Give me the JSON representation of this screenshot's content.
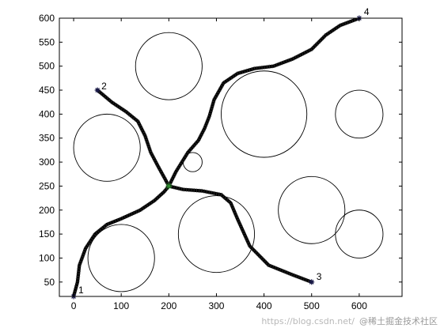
{
  "chart_data": {
    "type": "line",
    "xlim": [
      -30,
      690
    ],
    "ylim": [
      20,
      600
    ],
    "xticks": [
      0,
      100,
      200,
      300,
      400,
      500,
      600
    ],
    "yticks": [
      50,
      100,
      150,
      200,
      250,
      300,
      350,
      400,
      450,
      500,
      550,
      600
    ],
    "grid": false,
    "legend": false,
    "obstacles": [
      {
        "cx": 200,
        "cy": 500,
        "r": 70
      },
      {
        "cx": 70,
        "cy": 330,
        "r": 70
      },
      {
        "cx": 400,
        "cy": 400,
        "r": 90
      },
      {
        "cx": 600,
        "cy": 400,
        "r": 50
      },
      {
        "cx": 250,
        "cy": 300,
        "r": 20
      },
      {
        "cx": 100,
        "cy": 100,
        "r": 70
      },
      {
        "cx": 300,
        "cy": 150,
        "r": 80
      },
      {
        "cx": 500,
        "cy": 200,
        "r": 70
      },
      {
        "cx": 600,
        "cy": 150,
        "r": 50
      }
    ],
    "hub": {
      "x": 200,
      "y": 250,
      "color": "#2e8b2e"
    },
    "path_color": "#000000",
    "paths": [
      {
        "name": "1",
        "points": [
          [
            0,
            20
          ],
          [
            8,
            50
          ],
          [
            12,
            85
          ],
          [
            25,
            120
          ],
          [
            45,
            150
          ],
          [
            70,
            170
          ],
          [
            100,
            182
          ],
          [
            140,
            200
          ],
          [
            170,
            220
          ],
          [
            190,
            238
          ],
          [
            200,
            250
          ]
        ]
      },
      {
        "name": "2",
        "points": [
          [
            50,
            450
          ],
          [
            80,
            425
          ],
          [
            110,
            405
          ],
          [
            135,
            385
          ],
          [
            150,
            355
          ],
          [
            162,
            320
          ],
          [
            178,
            290
          ],
          [
            192,
            265
          ],
          [
            200,
            250
          ]
        ]
      },
      {
        "name": "3",
        "points": [
          [
            200,
            250
          ],
          [
            230,
            243
          ],
          [
            270,
            240
          ],
          [
            310,
            232
          ],
          [
            330,
            215
          ],
          [
            345,
            180
          ],
          [
            370,
            125
          ],
          [
            410,
            85
          ],
          [
            460,
            65
          ],
          [
            500,
            50
          ]
        ]
      },
      {
        "name": "4",
        "points": [
          [
            200,
            250
          ],
          [
            215,
            280
          ],
          [
            240,
            320
          ],
          [
            262,
            345
          ],
          [
            275,
            370
          ],
          [
            285,
            395
          ],
          [
            295,
            430
          ],
          [
            315,
            465
          ],
          [
            345,
            485
          ],
          [
            380,
            495
          ],
          [
            420,
            500
          ],
          [
            460,
            515
          ],
          [
            500,
            535
          ],
          [
            530,
            565
          ],
          [
            560,
            585
          ],
          [
            600,
            600
          ]
        ]
      }
    ],
    "endpoint_labels": [
      {
        "label": "1",
        "x": 0,
        "y": 20
      },
      {
        "label": "2",
        "x": 50,
        "y": 450
      },
      {
        "label": "3",
        "x": 500,
        "y": 50
      },
      {
        "label": "4",
        "x": 600,
        "y": 600
      }
    ]
  },
  "watermark": {
    "text": "https://blog.csdn.net/",
    "brand": "@稀土掘金技术社区"
  }
}
